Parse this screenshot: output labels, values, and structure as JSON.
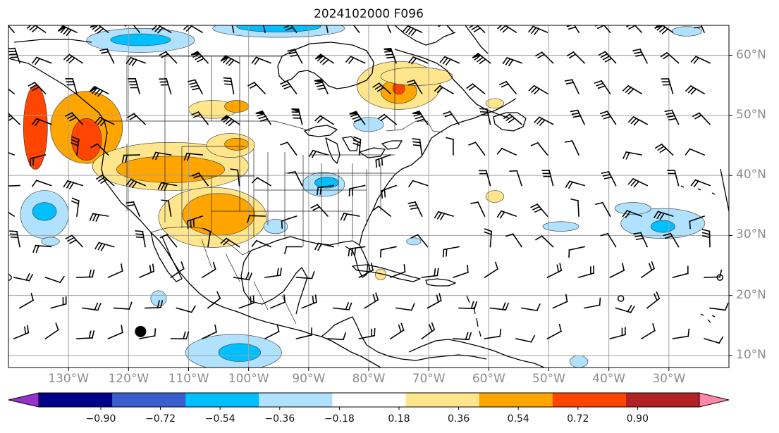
{
  "title": "2024102000 F096",
  "lat_labels": [
    {
      "text": "60°N",
      "lat": 60
    },
    {
      "text": "50°N",
      "lat": 50
    },
    {
      "text": "40°N",
      "lat": 40
    },
    {
      "text": "30°N",
      "lat": 30
    },
    {
      "text": "20°N",
      "lat": 20
    },
    {
      "text": "10°N",
      "lat": 10
    }
  ],
  "lon_labels": [
    {
      "text": "130°W",
      "lon": -130
    },
    {
      "text": "120°W",
      "lon": -120
    },
    {
      "text": "110°W",
      "lon": -110
    },
    {
      "text": "100°W",
      "lon": -100
    },
    {
      "text": "90°W",
      "lon": -90
    },
    {
      "text": "80°W",
      "lon": -80
    },
    {
      "text": "70°W",
      "lon": -70
    },
    {
      "text": "60°W",
      "lon": -60
    },
    {
      "text": "50°W",
      "lon": -50
    },
    {
      "text": "40°W",
      "lon": -40
    },
    {
      "text": "30°W",
      "lon": -30
    }
  ],
  "map_extent": {
    "lon_min": -140,
    "lon_max": -20,
    "lat_min": 8,
    "lat_max": 65
  },
  "colorbar": {
    "ticks": [
      "−0.90",
      "−0.72",
      "−0.54",
      "−0.36",
      "−0.18",
      "0.18",
      "0.36",
      "0.54",
      "0.72",
      "0.90"
    ],
    "colors": [
      "#9932cc",
      "#00008b",
      "#3a5fcd",
      "#00bfff",
      "#b0e2ff",
      "#ffffff",
      "#ffe68c",
      "#ffa500",
      "#ff4500",
      "#b22222",
      "#ff88aa"
    ],
    "under_color": "#9932cc",
    "over_color": "#ff88aa"
  },
  "anomaly_patches": [
    {
      "lon": -127,
      "lat": 48,
      "rx": 6,
      "ry": 6,
      "level": "0.36"
    },
    {
      "lon": -127,
      "lat": 46,
      "rx": 2.5,
      "ry": 3.5,
      "level": "0.54"
    },
    {
      "lon": -135.5,
      "lat": 48,
      "rx": 2,
      "ry": 7,
      "level": "0.54"
    },
    {
      "lon": -113,
      "lat": 41.5,
      "rx": 13,
      "ry": 4,
      "level": "0.18"
    },
    {
      "lon": -113,
      "lat": 41,
      "rx": 9,
      "ry": 2.2,
      "level": "0.36"
    },
    {
      "lon": -106,
      "lat": 33,
      "rx": 9,
      "ry": 5,
      "level": "0.18"
    },
    {
      "lon": -105,
      "lat": 33.5,
      "rx": 6,
      "ry": 3.5,
      "level": "0.36"
    },
    {
      "lon": -103,
      "lat": 45,
      "rx": 4,
      "ry": 2,
      "level": "0.18"
    },
    {
      "lon": -102,
      "lat": 45.2,
      "rx": 2,
      "ry": 1,
      "level": "0.36"
    },
    {
      "lon": -106,
      "lat": 51,
      "rx": 4,
      "ry": 1.5,
      "level": "0.18"
    },
    {
      "lon": -102,
      "lat": 51.5,
      "rx": 2,
      "ry": 1,
      "level": "0.36"
    },
    {
      "lon": -75,
      "lat": 55,
      "rx": 7,
      "ry": 4,
      "level": "0.18"
    },
    {
      "lon": -75,
      "lat": 54,
      "rx": 3,
      "ry": 2,
      "level": "0.36"
    },
    {
      "lon": -75,
      "lat": 54.5,
      "rx": 1,
      "ry": 1,
      "level": "0.54"
    },
    {
      "lon": -72,
      "lat": 56.5,
      "rx": 6,
      "ry": 1.5,
      "level": "0.18"
    },
    {
      "lon": -59,
      "lat": 36.5,
      "rx": 1.5,
      "ry": 1,
      "level": "0.18"
    },
    {
      "lon": -78,
      "lat": 23.5,
      "rx": 0.9,
      "ry": 0.9,
      "level": "0.18"
    },
    {
      "lon": -59,
      "lat": 52,
      "rx": 1.5,
      "ry": 0.8,
      "level": "0.18"
    },
    {
      "lon": -118,
      "lat": 62.5,
      "rx": 9,
      "ry": 2,
      "level": "-0.18"
    },
    {
      "lon": -118,
      "lat": 62.6,
      "rx": 5,
      "ry": 1,
      "level": "-0.36"
    },
    {
      "lon": -95,
      "lat": 64.5,
      "rx": 11,
      "ry": 1.5,
      "level": "-0.18"
    },
    {
      "lon": -95,
      "lat": 64.8,
      "rx": 7,
      "ry": 0.9,
      "level": "-0.36"
    },
    {
      "lon": -134,
      "lat": 33.5,
      "rx": 4,
      "ry": 4,
      "level": "-0.18"
    },
    {
      "lon": -134,
      "lat": 34,
      "rx": 2,
      "ry": 1.5,
      "level": "-0.36"
    },
    {
      "lon": -87.5,
      "lat": 38.5,
      "rx": 3.5,
      "ry": 2,
      "level": "-0.18"
    },
    {
      "lon": -87,
      "lat": 38.8,
      "rx": 2,
      "ry": 0.9,
      "level": "-0.36"
    },
    {
      "lon": -102.5,
      "lat": 10.5,
      "rx": 8,
      "ry": 3,
      "level": "-0.18"
    },
    {
      "lon": -101.5,
      "lat": 10.5,
      "rx": 3.5,
      "ry": 1.5,
      "level": "-0.36"
    },
    {
      "lon": -31,
      "lat": 32,
      "rx": 7,
      "ry": 2.5,
      "level": "-0.18"
    },
    {
      "lon": -31,
      "lat": 31.5,
      "rx": 2,
      "ry": 1,
      "level": "-0.36"
    },
    {
      "lon": -36,
      "lat": 34.5,
      "rx": 3,
      "ry": 1,
      "level": "-0.18"
    },
    {
      "lon": -48,
      "lat": 31.5,
      "rx": 3,
      "ry": 0.8,
      "level": "-0.18"
    },
    {
      "lon": -80,
      "lat": 48.5,
      "rx": 2.5,
      "ry": 1.2,
      "level": "-0.18"
    },
    {
      "lon": -133,
      "lat": 29,
      "rx": 1.5,
      "ry": 0.7,
      "level": "-0.18"
    },
    {
      "lon": -115,
      "lat": 19.5,
      "rx": 1.3,
      "ry": 1.3,
      "level": "-0.18"
    },
    {
      "lon": -72.5,
      "lat": 29,
      "rx": 1.2,
      "ry": 0.6,
      "level": "-0.18"
    },
    {
      "lon": -27,
      "lat": 64,
      "rx": 2.5,
      "ry": 0.8,
      "level": "-0.18"
    },
    {
      "lon": -95.5,
      "lat": 31.5,
      "rx": 2,
      "ry": 1.2,
      "level": "-0.18"
    },
    {
      "lon": -45,
      "lat": 9,
      "rx": 1.5,
      "ry": 1,
      "level": "-0.18"
    }
  ],
  "markers": [
    {
      "lon": -118,
      "lat": 14,
      "kind": "filled"
    },
    {
      "lon": -140,
      "lat": 23,
      "kind": "open"
    },
    {
      "lon": -38,
      "lat": 19.5,
      "kind": "open"
    },
    {
      "lon": -21.5,
      "lat": 23,
      "kind": "open"
    }
  ]
}
